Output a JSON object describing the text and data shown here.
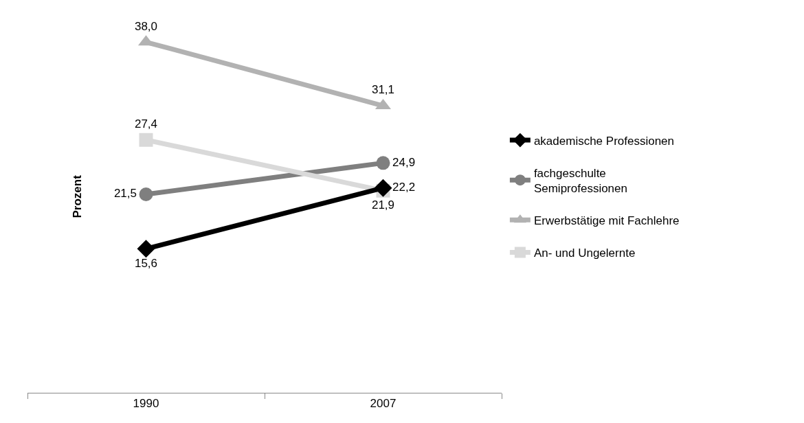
{
  "chart_data": {
    "type": "line",
    "ylabel": "Prozent",
    "categories": [
      "1990",
      "2007"
    ],
    "legend": "right",
    "series": [
      {
        "name": "akademische Professionen",
        "color": "#000000",
        "marker": "diamond",
        "values": [
          15.6,
          22.2
        ],
        "value_labels": [
          "15,6",
          "22,2"
        ]
      },
      {
        "name": "fachgeschulte\nSemiprofessionen",
        "color": "#7f7f7f",
        "marker": "circle",
        "values": [
          21.5,
          24.9
        ],
        "value_labels": [
          "21,5",
          "24,9"
        ]
      },
      {
        "name": "Erwerbstätige mit Fachlehre",
        "color": "#b2b2b2",
        "marker": "triangle",
        "values": [
          38.0,
          31.1
        ],
        "value_labels": [
          "38,0",
          "31,1"
        ]
      },
      {
        "name": "An- und Ungelernte",
        "color": "#d9d9d9",
        "marker": "square",
        "values": [
          27.4,
          21.9
        ],
        "value_labels": [
          "27,4",
          "21,9"
        ]
      }
    ]
  }
}
